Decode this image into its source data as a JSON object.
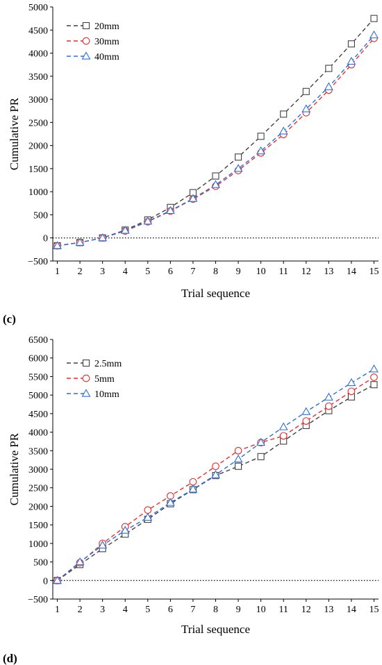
{
  "chart_data": [
    {
      "type": "line",
      "panel_label": "(c)",
      "xlabel": "Trial sequence",
      "ylabel": "Cumulative PR",
      "x": [
        1,
        2,
        3,
        4,
        5,
        6,
        7,
        8,
        9,
        10,
        11,
        12,
        13,
        14,
        15
      ],
      "x_ticks": [
        1,
        2,
        3,
        4,
        5,
        6,
        7,
        8,
        9,
        10,
        11,
        12,
        13,
        14,
        15
      ],
      "xlim": [
        0.8,
        15.2
      ],
      "ylim": [
        -500,
        5000
      ],
      "y_ticks": [
        -500,
        0,
        500,
        1000,
        1500,
        2000,
        2500,
        3000,
        3500,
        4000,
        4500,
        5000
      ],
      "y_tick_labels": [
        "−500",
        "0",
        "500",
        "1000",
        "1500",
        "2000",
        "2500",
        "3000",
        "3500",
        "4000",
        "4500",
        "5000"
      ],
      "reference_line": 0,
      "legend_position": "top-left",
      "series": [
        {
          "name": "20mm",
          "marker": "square",
          "color": "#404040",
          "values": [
            -170,
            -100,
            0,
            170,
            390,
            660,
            980,
            1340,
            1750,
            2200,
            2680,
            3170,
            3670,
            4200,
            4750
          ]
        },
        {
          "name": "30mm",
          "marker": "circle",
          "color": "#ee2a2a",
          "values": [
            -170,
            -100,
            0,
            150,
            350,
            580,
            840,
            1120,
            1460,
            1840,
            2240,
            2710,
            3200,
            3750,
            4320
          ]
        },
        {
          "name": "40mm",
          "marker": "triangle",
          "color": "#2a6fdb",
          "values": [
            -170,
            -100,
            0,
            160,
            360,
            590,
            850,
            1150,
            1500,
            1880,
            2310,
            2790,
            3270,
            3820,
            4390
          ]
        }
      ]
    },
    {
      "type": "line",
      "panel_label": "(d)",
      "xlabel": "Trial sequence",
      "ylabel": "Cumulative PR",
      "x": [
        1,
        2,
        3,
        4,
        5,
        6,
        7,
        8,
        9,
        10,
        11,
        12,
        13,
        14,
        15
      ],
      "x_ticks": [
        1,
        2,
        3,
        4,
        5,
        6,
        7,
        8,
        9,
        10,
        11,
        12,
        13,
        14,
        15
      ],
      "xlim": [
        0.8,
        15.2
      ],
      "ylim": [
        -500,
        6500
      ],
      "y_ticks": [
        -500,
        0,
        500,
        1000,
        1500,
        2000,
        2500,
        3000,
        3500,
        4000,
        4500,
        5000,
        5500,
        6000,
        6500
      ],
      "y_tick_labels": [
        "−500",
        "0",
        "500",
        "1000",
        "1500",
        "2000",
        "2500",
        "3000",
        "3500",
        "4000",
        "4500",
        "5000",
        "5500",
        "6000",
        "6500"
      ],
      "reference_line": 0,
      "legend_position": "top-left",
      "series": [
        {
          "name": "2.5mm",
          "marker": "square",
          "color": "#404040",
          "values": [
            0,
            430,
            860,
            1250,
            1650,
            2070,
            2450,
            2830,
            3080,
            3340,
            3760,
            4180,
            4580,
            4950,
            5280
          ]
        },
        {
          "name": "5mm",
          "marker": "circle",
          "color": "#ee2a2a",
          "values": [
            0,
            480,
            1000,
            1450,
            1900,
            2280,
            2660,
            3080,
            3500,
            3720,
            3900,
            4300,
            4700,
            5100,
            5480
          ]
        },
        {
          "name": "10mm",
          "marker": "triangle",
          "color": "#2a6fdb",
          "values": [
            0,
            500,
            950,
            1350,
            1700,
            2100,
            2460,
            2850,
            3270,
            3720,
            4140,
            4550,
            4940,
            5330,
            5700
          ]
        }
      ]
    }
  ]
}
